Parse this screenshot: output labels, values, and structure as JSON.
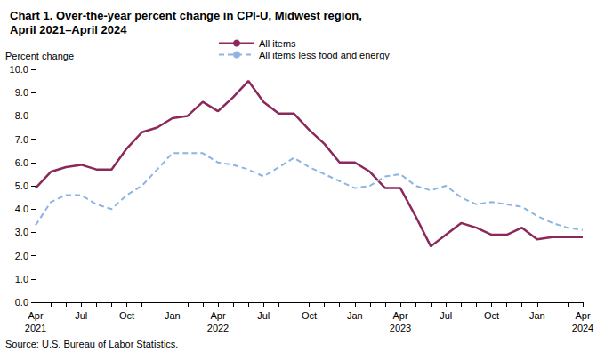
{
  "chart_data": {
    "type": "line",
    "title": "Chart 1. Over-the-year percent change in CPI-U, Midwest region,\nApril 2021–April 2024",
    "y_label": "Percent change",
    "source": "Source: U.S. Bureau of Labor Statistics.",
    "categories": [
      "Apr\n2021",
      null,
      null,
      "Jul",
      null,
      null,
      "Oct",
      null,
      null,
      "Jan",
      null,
      null,
      "Apr\n2022",
      null,
      null,
      "Jul",
      null,
      null,
      "Oct",
      null,
      null,
      "Jan",
      null,
      null,
      "Apr\n2023",
      null,
      null,
      "Jul",
      null,
      null,
      "Oct",
      null,
      null,
      "Jan",
      null,
      null,
      "Apr\n2024"
    ],
    "series": [
      {
        "name": "All items",
        "color": "#8b2a5a",
        "line_style": "solid",
        "values": [
          4.9,
          5.6,
          5.8,
          5.9,
          5.7,
          5.7,
          6.6,
          7.3,
          7.5,
          7.9,
          8.0,
          8.6,
          8.2,
          8.8,
          9.5,
          8.6,
          8.1,
          8.1,
          7.4,
          6.8,
          6.0,
          6.0,
          5.6,
          4.9,
          4.9,
          3.7,
          2.4,
          2.9,
          3.4,
          3.2,
          2.9,
          2.9,
          3.2,
          2.7,
          2.8,
          2.8,
          2.8
        ]
      },
      {
        "name": "All items less food and energy",
        "color": "#8db4e2",
        "line_style": "dashed",
        "values": [
          3.3,
          4.3,
          4.6,
          4.6,
          4.2,
          4.0,
          4.6,
          5.0,
          5.7,
          6.4,
          6.4,
          6.4,
          6.0,
          5.9,
          5.7,
          5.4,
          5.8,
          6.2,
          5.8,
          5.5,
          5.2,
          4.9,
          5.0,
          5.4,
          5.5,
          5.0,
          4.8,
          5.0,
          4.5,
          4.2,
          4.3,
          4.2,
          4.1,
          3.7,
          3.4,
          3.2,
          3.1
        ]
      }
    ],
    "ylim": [
      0,
      10
    ],
    "yticks": [
      {
        "value": 0,
        "label": "0.0"
      },
      {
        "value": 1,
        "label": "1.0"
      },
      {
        "value": 2,
        "label": "2.0"
      },
      {
        "value": 3,
        "label": "3.0"
      },
      {
        "value": 4,
        "label": "4.0"
      },
      {
        "value": 5,
        "label": "5.0"
      },
      {
        "value": 6,
        "label": "6.0"
      },
      {
        "value": 7,
        "label": "7.0"
      },
      {
        "value": 8,
        "label": "8.0"
      },
      {
        "value": 9,
        "label": "9.0"
      },
      {
        "value": 10,
        "label": "10.0"
      }
    ],
    "grid": false,
    "legend": "top"
  }
}
